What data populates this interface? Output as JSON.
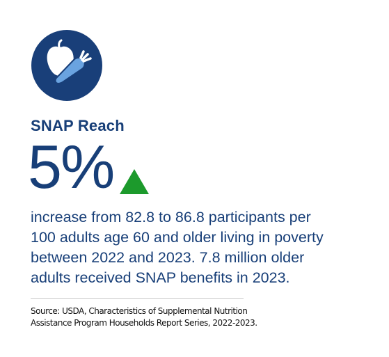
{
  "heading": "SNAP Reach",
  "stat": "5%",
  "description": [
    "increase from 82.8 to 86.8 participants per",
    "100 adults age 60 and older living in poverty",
    "between 2022 and 2023. 7.8 million older",
    "adults received SNAP benefits in 2023."
  ],
  "source": [
    "Source: USDA, Characteristics of Supplemental Nutrition",
    "Assistance Program Households Report Series, 2022-2023."
  ]
}
